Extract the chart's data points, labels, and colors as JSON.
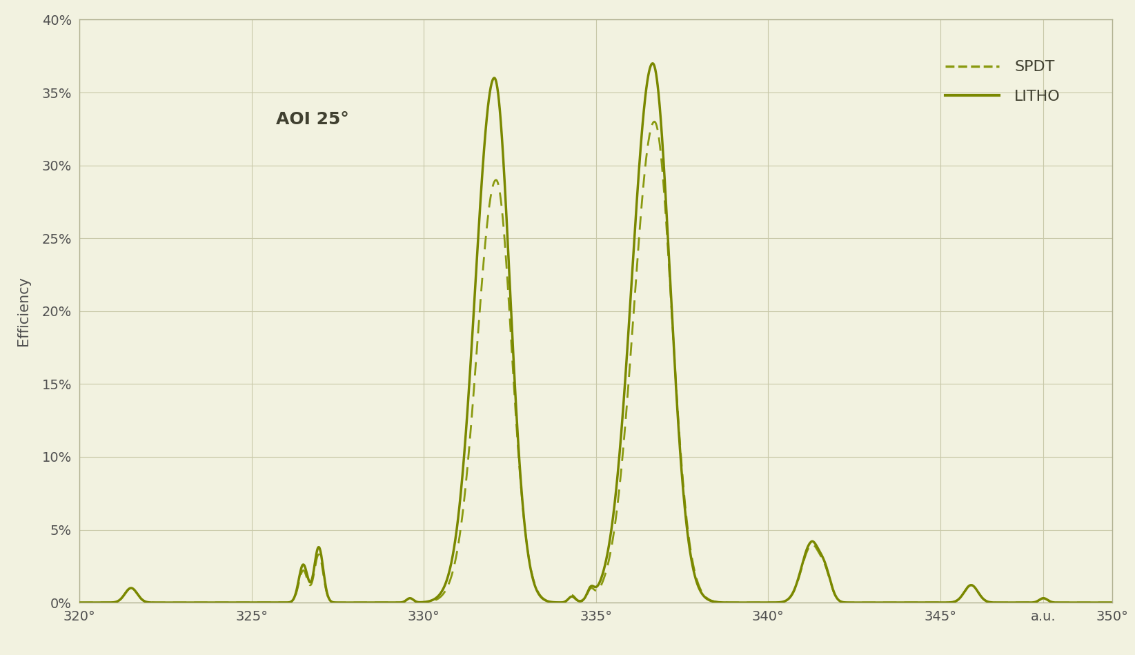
{
  "background_color": "#f2f2e0",
  "line_color_solid": "#7a8800",
  "line_color_dashed": "#8a9a10",
  "xlabel_ticks": [
    "320°",
    "325°",
    "330°",
    "335°",
    "340°",
    "345°",
    "a.u.",
    "350°"
  ],
  "xlabel_tick_vals": [
    320,
    325,
    330,
    335,
    340,
    345,
    348.0,
    350
  ],
  "ylabel": "Efficiency",
  "ylim": [
    0,
    0.4
  ],
  "xlim": [
    320,
    350
  ],
  "yticks": [
    0.0,
    0.05,
    0.1,
    0.15,
    0.2,
    0.25,
    0.3,
    0.35,
    0.4
  ],
  "ytick_labels": [
    "0%",
    "5%",
    "10%",
    "15%",
    "20%",
    "25%",
    "30%",
    "35%",
    "40%"
  ],
  "annotation": "AOI 25°",
  "legend_labels": [
    "SPDT",
    "LITHO"
  ],
  "axis_fontsize": 14,
  "legend_fontsize": 16,
  "annotation_fontsize": 18
}
